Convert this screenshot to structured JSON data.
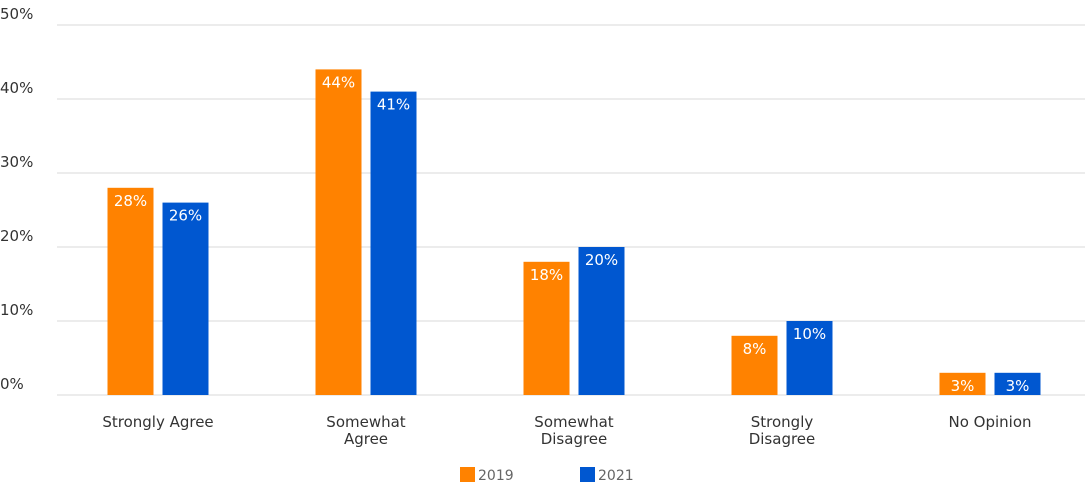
{
  "chart_data": {
    "type": "bar",
    "categories": [
      [
        "Strongly Agree"
      ],
      [
        "Somewhat",
        "Agree"
      ],
      [
        "Somewhat",
        "Disagree"
      ],
      [
        "Strongly",
        "Disagree"
      ],
      [
        "No Opinion"
      ]
    ],
    "series": [
      {
        "name": "2019",
        "color": "#ff8200",
        "values": [
          28,
          44,
          18,
          8,
          3
        ],
        "labels": [
          "28%",
          "44%",
          "18%",
          "8%",
          "3%"
        ]
      },
      {
        "name": "2021",
        "color": "#0057d0",
        "values": [
          26,
          41,
          20,
          10,
          3
        ],
        "labels": [
          "26%",
          "41%",
          "20%",
          "10%",
          "3%"
        ]
      }
    ],
    "y_ticks": [
      0,
      10,
      20,
      30,
      40,
      50
    ],
    "y_tick_labels": [
      "0%",
      "10%",
      "20%",
      "30%",
      "40%",
      "50%"
    ],
    "ylim": [
      0,
      50
    ],
    "grid": true,
    "legend": "bottom-center",
    "label_color_inside": "#ffffff",
    "label_color_outside": "#999999"
  }
}
